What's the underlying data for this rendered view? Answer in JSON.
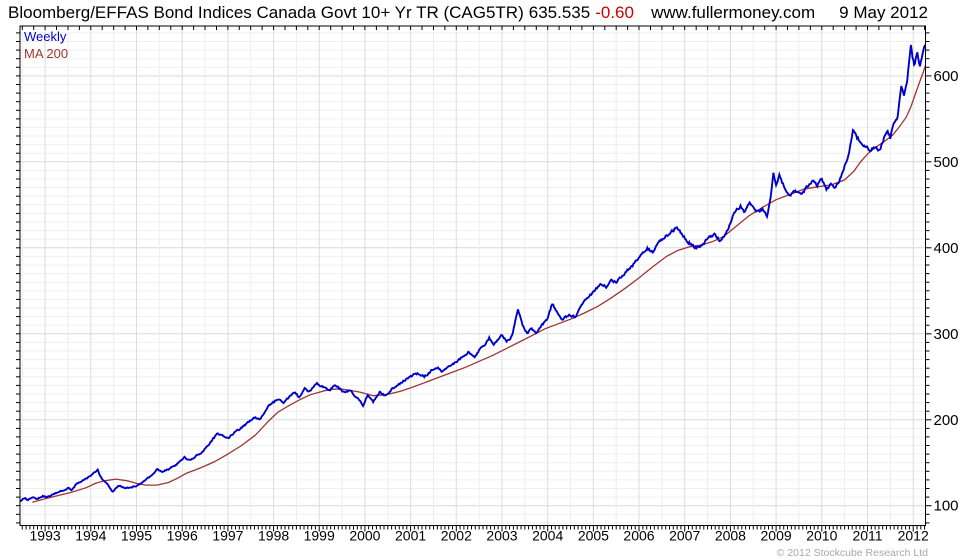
{
  "header": {
    "title": "Bloomberg/EFFAS Bond Indices Canada Govt 10+ Yr TR (CAG5TR)",
    "last_price": "635.535",
    "change": "-0.60",
    "website": "www.fullermoney.com",
    "date": "9 May 2012"
  },
  "legend": {
    "weekly": "Weekly",
    "ma": "MA 200"
  },
  "footer": {
    "copyright": "© 2012 Stockcube Research Ltd"
  },
  "colors": {
    "price_line": "#0000cc",
    "ma_line": "#9e3434",
    "change_negative": "#cc0000",
    "grid_minor": "#efefef",
    "grid_major": "#d9d9d9",
    "axis": "#000000",
    "copyright_gray": "#a8a8a8"
  },
  "chart_data": {
    "type": "line",
    "title": "Bloomberg/EFFAS Bond Indices Canada Govt 10+ Yr TR (CAG5TR)",
    "timeframe": "Weekly",
    "last_price": 635.535,
    "change": -0.6,
    "grid": true,
    "legend_position": "top-left",
    "x_axis": {
      "unit": "year",
      "range": [
        1992.45,
        2012.27
      ],
      "ticks": [
        1993,
        1994,
        1995,
        1996,
        1997,
        1998,
        1999,
        2000,
        2001,
        2002,
        2003,
        2004,
        2005,
        2006,
        2007,
        2008,
        2009,
        2010,
        2011,
        2012
      ]
    },
    "y_axis": {
      "position": "right",
      "range": [
        77,
        658
      ],
      "grid_step": 10,
      "ticks": [
        100,
        200,
        300,
        400,
        500,
        600
      ]
    },
    "series": [
      {
        "name": "Weekly",
        "color": "#0000cc",
        "points": [
          [
            1992.45,
            105
          ],
          [
            1992.55,
            109
          ],
          [
            1992.62,
            107
          ],
          [
            1992.72,
            110
          ],
          [
            1992.82,
            108
          ],
          [
            1992.95,
            111
          ],
          [
            1993.05,
            110
          ],
          [
            1993.15,
            113
          ],
          [
            1993.28,
            116
          ],
          [
            1993.4,
            118
          ],
          [
            1993.5,
            121
          ],
          [
            1993.58,
            118
          ],
          [
            1993.68,
            125
          ],
          [
            1993.78,
            128
          ],
          [
            1993.88,
            131
          ],
          [
            1993.98,
            134
          ],
          [
            1994.08,
            139
          ],
          [
            1994.15,
            142
          ],
          [
            1994.24,
            131
          ],
          [
            1994.36,
            125
          ],
          [
            1994.48,
            116
          ],
          [
            1994.56,
            121
          ],
          [
            1994.64,
            124
          ],
          [
            1994.74,
            120
          ],
          [
            1994.86,
            121
          ],
          [
            1995.0,
            123
          ],
          [
            1995.12,
            127
          ],
          [
            1995.25,
            132
          ],
          [
            1995.35,
            136
          ],
          [
            1995.45,
            142
          ],
          [
            1995.55,
            139
          ],
          [
            1995.68,
            142
          ],
          [
            1995.82,
            146
          ],
          [
            1995.95,
            151
          ],
          [
            1996.05,
            156
          ],
          [
            1996.15,
            153
          ],
          [
            1996.28,
            157
          ],
          [
            1996.42,
            162
          ],
          [
            1996.55,
            169
          ],
          [
            1996.68,
            178
          ],
          [
            1996.78,
            184
          ],
          [
            1996.9,
            181
          ],
          [
            1997.0,
            178
          ],
          [
            1997.12,
            184
          ],
          [
            1997.25,
            189
          ],
          [
            1997.38,
            194
          ],
          [
            1997.5,
            199
          ],
          [
            1997.6,
            203
          ],
          [
            1997.7,
            200
          ],
          [
            1997.82,
            209
          ],
          [
            1997.93,
            219
          ],
          [
            1998.05,
            222
          ],
          [
            1998.14,
            224
          ],
          [
            1998.22,
            219
          ],
          [
            1998.35,
            227
          ],
          [
            1998.47,
            232
          ],
          [
            1998.56,
            226
          ],
          [
            1998.68,
            236
          ],
          [
            1998.8,
            233
          ],
          [
            1998.95,
            242
          ],
          [
            1999.08,
            238
          ],
          [
            1999.22,
            234
          ],
          [
            1999.34,
            240
          ],
          [
            1999.45,
            236
          ],
          [
            1999.56,
            231
          ],
          [
            1999.68,
            234
          ],
          [
            1999.84,
            225
          ],
          [
            1999.96,
            217
          ],
          [
            2000.06,
            228
          ],
          [
            2000.18,
            221
          ],
          [
            2000.32,
            232
          ],
          [
            2000.44,
            228
          ],
          [
            2000.6,
            236
          ],
          [
            2000.76,
            242
          ],
          [
            2000.9,
            247
          ],
          [
            2001.02,
            251
          ],
          [
            2001.15,
            254
          ],
          [
            2001.3,
            250
          ],
          [
            2001.45,
            257
          ],
          [
            2001.6,
            261
          ],
          [
            2001.7,
            256
          ],
          [
            2001.85,
            262
          ],
          [
            2002.0,
            267
          ],
          [
            2002.14,
            274
          ],
          [
            2002.28,
            279
          ],
          [
            2002.4,
            272
          ],
          [
            2002.52,
            283
          ],
          [
            2002.64,
            288
          ],
          [
            2002.72,
            295
          ],
          [
            2002.82,
            288
          ],
          [
            2002.92,
            293
          ],
          [
            2003.0,
            298
          ],
          [
            2003.1,
            291
          ],
          [
            2003.22,
            297
          ],
          [
            2003.35,
            330
          ],
          [
            2003.45,
            310
          ],
          [
            2003.55,
            300
          ],
          [
            2003.65,
            306
          ],
          [
            2003.76,
            301
          ],
          [
            2003.88,
            310
          ],
          [
            2004.0,
            318
          ],
          [
            2004.1,
            335
          ],
          [
            2004.2,
            325
          ],
          [
            2004.33,
            316
          ],
          [
            2004.45,
            322
          ],
          [
            2004.6,
            319
          ],
          [
            2004.72,
            330
          ],
          [
            2004.83,
            340
          ],
          [
            2004.95,
            346
          ],
          [
            2005.08,
            354
          ],
          [
            2005.18,
            358
          ],
          [
            2005.28,
            354
          ],
          [
            2005.4,
            363
          ],
          [
            2005.5,
            359
          ],
          [
            2005.65,
            369
          ],
          [
            2005.8,
            376
          ],
          [
            2005.95,
            385
          ],
          [
            2006.08,
            393
          ],
          [
            2006.18,
            399
          ],
          [
            2006.3,
            395
          ],
          [
            2006.45,
            407
          ],
          [
            2006.6,
            414
          ],
          [
            2006.72,
            419
          ],
          [
            2006.83,
            424
          ],
          [
            2006.95,
            414
          ],
          [
            2007.08,
            407
          ],
          [
            2007.22,
            400
          ],
          [
            2007.38,
            403
          ],
          [
            2007.52,
            411
          ],
          [
            2007.65,
            416
          ],
          [
            2007.78,
            407
          ],
          [
            2007.92,
            419
          ],
          [
            2008.05,
            436
          ],
          [
            2008.14,
            444
          ],
          [
            2008.22,
            448
          ],
          [
            2008.3,
            441
          ],
          [
            2008.42,
            451
          ],
          [
            2008.52,
            445
          ],
          [
            2008.62,
            441
          ],
          [
            2008.7,
            446
          ],
          [
            2008.8,
            437
          ],
          [
            2008.88,
            458
          ],
          [
            2008.94,
            489
          ],
          [
            2009.0,
            472
          ],
          [
            2009.07,
            486
          ],
          [
            2009.17,
            471
          ],
          [
            2009.3,
            461
          ],
          [
            2009.42,
            467
          ],
          [
            2009.55,
            462
          ],
          [
            2009.67,
            470
          ],
          [
            2009.8,
            477
          ],
          [
            2009.9,
            472
          ],
          [
            2010.0,
            481
          ],
          [
            2010.1,
            468
          ],
          [
            2010.2,
            473
          ],
          [
            2010.3,
            470
          ],
          [
            2010.42,
            483
          ],
          [
            2010.52,
            498
          ],
          [
            2010.6,
            511
          ],
          [
            2010.68,
            537
          ],
          [
            2010.77,
            528
          ],
          [
            2010.87,
            523
          ],
          [
            2010.97,
            517
          ],
          [
            2011.08,
            513
          ],
          [
            2011.17,
            519
          ],
          [
            2011.27,
            513
          ],
          [
            2011.36,
            527
          ],
          [
            2011.44,
            535
          ],
          [
            2011.5,
            528
          ],
          [
            2011.58,
            545
          ],
          [
            2011.66,
            553
          ],
          [
            2011.74,
            588
          ],
          [
            2011.8,
            576
          ],
          [
            2011.87,
            596
          ],
          [
            2011.95,
            633
          ],
          [
            2012.02,
            612
          ],
          [
            2012.09,
            627
          ],
          [
            2012.15,
            613
          ],
          [
            2012.21,
            629
          ],
          [
            2012.27,
            636
          ]
        ]
      },
      {
        "name": "MA 200",
        "color": "#9e3434",
        "points": [
          [
            1992.72,
            104
          ],
          [
            1993.0,
            108
          ],
          [
            1993.3,
            112
          ],
          [
            1993.6,
            116
          ],
          [
            1993.9,
            121
          ],
          [
            1994.1,
            126
          ],
          [
            1994.3,
            129
          ],
          [
            1994.55,
            131
          ],
          [
            1994.8,
            129
          ],
          [
            1995.0,
            126
          ],
          [
            1995.2,
            124
          ],
          [
            1995.45,
            124
          ],
          [
            1995.7,
            127
          ],
          [
            1995.9,
            132
          ],
          [
            1996.1,
            138
          ],
          [
            1996.4,
            144
          ],
          [
            1996.7,
            151
          ],
          [
            1997.0,
            160
          ],
          [
            1997.3,
            170
          ],
          [
            1997.6,
            182
          ],
          [
            1997.9,
            199
          ],
          [
            1998.1,
            209
          ],
          [
            1998.36,
            217
          ],
          [
            1998.6,
            224
          ],
          [
            1998.8,
            229
          ],
          [
            1999.0,
            232
          ],
          [
            1999.2,
            235
          ],
          [
            1999.45,
            236
          ],
          [
            1999.7,
            234
          ],
          [
            1999.9,
            232
          ],
          [
            2000.18,
            228
          ],
          [
            2000.45,
            229
          ],
          [
            2000.77,
            233
          ],
          [
            2001.0,
            237
          ],
          [
            2001.3,
            243
          ],
          [
            2001.6,
            249
          ],
          [
            2001.9,
            255
          ],
          [
            2002.2,
            261
          ],
          [
            2002.5,
            268
          ],
          [
            2002.8,
            275
          ],
          [
            2003.1,
            283
          ],
          [
            2003.4,
            291
          ],
          [
            2003.7,
            299
          ],
          [
            2003.95,
            306
          ],
          [
            2004.2,
            311
          ],
          [
            2004.5,
            317
          ],
          [
            2004.8,
            324
          ],
          [
            2005.1,
            332
          ],
          [
            2005.4,
            342
          ],
          [
            2005.7,
            353
          ],
          [
            2006.0,
            365
          ],
          [
            2006.3,
            378
          ],
          [
            2006.6,
            390
          ],
          [
            2006.85,
            397
          ],
          [
            2007.1,
            401
          ],
          [
            2007.35,
            403
          ],
          [
            2007.6,
            407
          ],
          [
            2007.85,
            413
          ],
          [
            2008.1,
            424
          ],
          [
            2008.4,
            437
          ],
          [
            2008.7,
            447
          ],
          [
            2009.0,
            456
          ],
          [
            2009.3,
            462
          ],
          [
            2009.6,
            468
          ],
          [
            2009.9,
            471
          ],
          [
            2010.2,
            473
          ],
          [
            2010.5,
            479
          ],
          [
            2010.7,
            489
          ],
          [
            2010.85,
            500
          ],
          [
            2011.0,
            509
          ],
          [
            2011.15,
            516
          ],
          [
            2011.35,
            523
          ],
          [
            2011.55,
            531
          ],
          [
            2011.7,
            541
          ],
          [
            2011.85,
            552
          ],
          [
            2011.95,
            564
          ],
          [
            2012.05,
            579
          ],
          [
            2012.15,
            594
          ],
          [
            2012.22,
            604
          ],
          [
            2012.27,
            612
          ]
        ]
      }
    ]
  }
}
